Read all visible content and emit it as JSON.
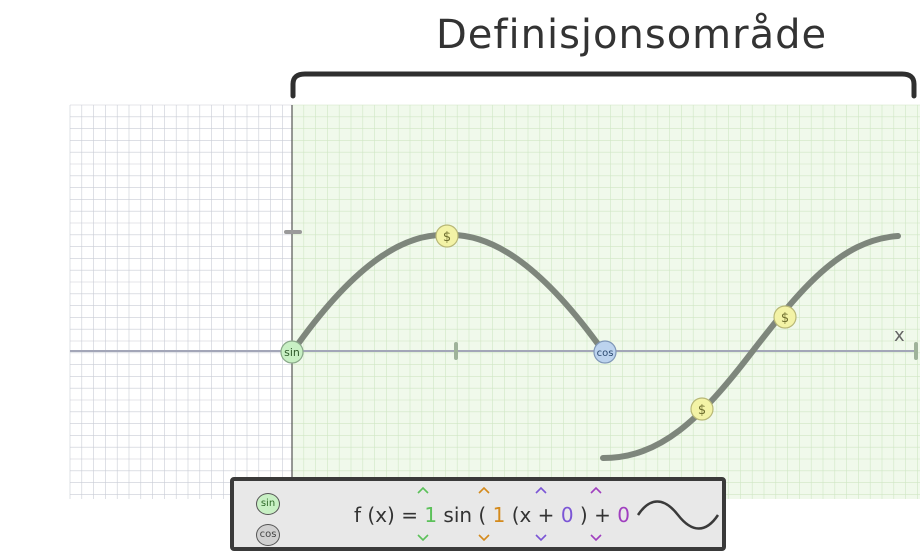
{
  "header": {
    "title": "Definisjonsområde"
  },
  "axis": {
    "x_label": "x"
  },
  "markers": {
    "start_label": "sin",
    "end_label": "cos",
    "dollar": "$"
  },
  "panel": {
    "sin_button": "sin",
    "cos_button": "cos",
    "formula": {
      "f_prefix": "f (x) =",
      "amplitude": "1",
      "func": "sin (",
      "frequency": "1",
      "x_open": "(x +",
      "phase": "0",
      "close_plus": ") +",
      "vertical": "0"
    }
  },
  "colors": {
    "grid": "#c9ccd6",
    "domain_fill": "#e9f7e2",
    "curve": "#7e867c",
    "sin_marker": "#c8f0c4",
    "cos_marker": "#bcd3ee",
    "dollar_marker": "#f3f3a6",
    "amplitude": "#5cc15a",
    "frequency": "#d48a1c",
    "phase": "#7b55d6",
    "vertical": "#a03fbf"
  }
}
